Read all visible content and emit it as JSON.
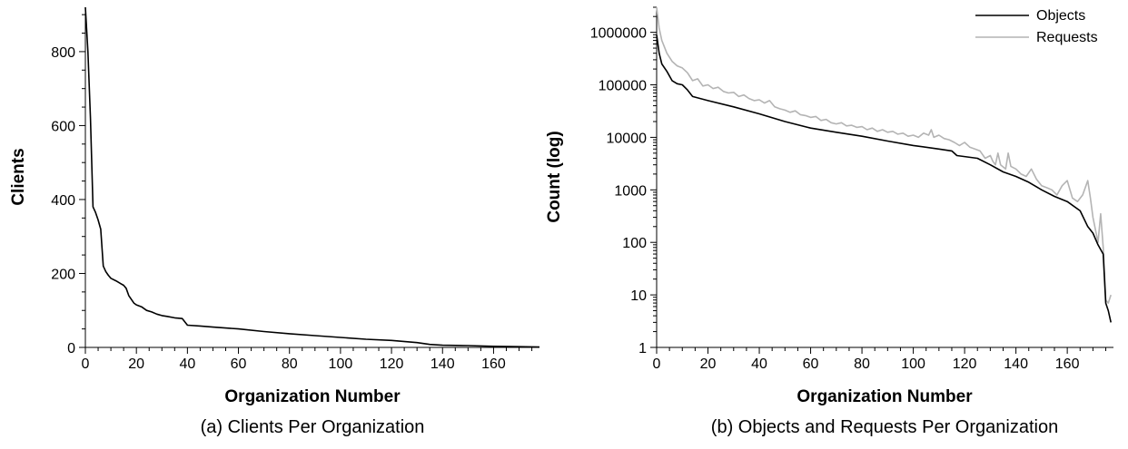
{
  "chart_data": [
    {
      "type": "line",
      "caption": "(a) Clients Per Organization",
      "xlabel": "Organization Number",
      "ylabel": "Clients",
      "xlim": [
        0,
        178
      ],
      "ylim": [
        0,
        920
      ],
      "xticks": [
        0,
        20,
        40,
        60,
        80,
        100,
        120,
        140,
        160
      ],
      "yticks": [
        0,
        200,
        400,
        600,
        800
      ],
      "series": [
        {
          "color": "#000000",
          "points": [
            [
              0,
              920
            ],
            [
              1,
              800
            ],
            [
              2,
              620
            ],
            [
              3,
              380
            ],
            [
              4,
              365
            ],
            [
              5,
              345
            ],
            [
              6,
              320
            ],
            [
              7,
              220
            ],
            [
              8,
              205
            ],
            [
              9,
              195
            ],
            [
              10,
              187
            ],
            [
              12,
              180
            ],
            [
              14,
              172
            ],
            [
              15,
              168
            ],
            [
              16,
              160
            ],
            [
              17,
              140
            ],
            [
              19,
              120
            ],
            [
              20,
              115
            ],
            [
              22,
              110
            ],
            [
              24,
              100
            ],
            [
              26,
              96
            ],
            [
              28,
              90
            ],
            [
              30,
              86
            ],
            [
              32,
              84
            ],
            [
              35,
              80
            ],
            [
              38,
              78
            ],
            [
              40,
              60
            ],
            [
              45,
              58
            ],
            [
              50,
              55
            ],
            [
              60,
              50
            ],
            [
              70,
              43
            ],
            [
              80,
              37
            ],
            [
              90,
              32
            ],
            [
              100,
              27
            ],
            [
              110,
              22
            ],
            [
              120,
              19
            ],
            [
              130,
              13
            ],
            [
              135,
              8
            ],
            [
              140,
              6
            ],
            [
              150,
              5
            ],
            [
              160,
              3
            ],
            [
              170,
              2
            ],
            [
              178,
              1
            ]
          ]
        }
      ]
    },
    {
      "type": "line",
      "caption": "(b) Objects and Requests Per Organization",
      "xlabel": "Organization Number",
      "ylabel": "Count (log)",
      "xlim": [
        0,
        178
      ],
      "yscale": "log",
      "ylim": [
        1,
        3000000
      ],
      "xticks": [
        0,
        20,
        40,
        60,
        80,
        100,
        120,
        140,
        160
      ],
      "yticks": [
        1,
        10,
        100,
        1000,
        10000,
        100000,
        1000000
      ],
      "ytick_labels": [
        "1",
        "10",
        "100",
        "1000",
        "10000",
        "100000",
        "1000000"
      ],
      "legend": {
        "position": "top-right"
      },
      "series": [
        {
          "name": "Objects",
          "color": "#000000",
          "points": [
            [
              0,
              900000
            ],
            [
              1,
              400000
            ],
            [
              2,
              250000
            ],
            [
              4,
              180000
            ],
            [
              6,
              120000
            ],
            [
              8,
              105000
            ],
            [
              10,
              100000
            ],
            [
              12,
              80000
            ],
            [
              14,
              60000
            ],
            [
              20,
              50000
            ],
            [
              30,
              38000
            ],
            [
              40,
              28000
            ],
            [
              50,
              20000
            ],
            [
              60,
              15000
            ],
            [
              70,
              12500
            ],
            [
              80,
              10500
            ],
            [
              90,
              8500
            ],
            [
              100,
              7000
            ],
            [
              110,
              6000
            ],
            [
              115,
              5500
            ],
            [
              117,
              4500
            ],
            [
              125,
              4000
            ],
            [
              130,
              3000
            ],
            [
              135,
              2200
            ],
            [
              140,
              1800
            ],
            [
              145,
              1400
            ],
            [
              150,
              1000
            ],
            [
              155,
              750
            ],
            [
              160,
              600
            ],
            [
              165,
              400
            ],
            [
              168,
              200
            ],
            [
              170,
              150
            ],
            [
              172,
              90
            ],
            [
              174,
              60
            ],
            [
              175,
              7
            ],
            [
              176,
              5
            ],
            [
              177,
              3
            ]
          ]
        },
        {
          "name": "Requests",
          "color": "#b4b4b4",
          "points": [
            [
              0,
              3000000
            ],
            [
              1,
              1200000
            ],
            [
              2,
              700000
            ],
            [
              4,
              400000
            ],
            [
              6,
              280000
            ],
            [
              8,
              230000
            ],
            [
              10,
              210000
            ],
            [
              12,
              170000
            ],
            [
              14,
              120000
            ],
            [
              16,
              130000
            ],
            [
              18,
              95000
            ],
            [
              20,
              100000
            ],
            [
              22,
              85000
            ],
            [
              24,
              90000
            ],
            [
              26,
              75000
            ],
            [
              28,
              70000
            ],
            [
              30,
              72000
            ],
            [
              32,
              60000
            ],
            [
              34,
              64000
            ],
            [
              36,
              55000
            ],
            [
              38,
              50000
            ],
            [
              40,
              52000
            ],
            [
              42,
              45000
            ],
            [
              44,
              50000
            ],
            [
              46,
              38000
            ],
            [
              48,
              35000
            ],
            [
              50,
              33000
            ],
            [
              52,
              30000
            ],
            [
              54,
              32000
            ],
            [
              56,
              27000
            ],
            [
              58,
              26000
            ],
            [
              60,
              24000
            ],
            [
              62,
              25000
            ],
            [
              64,
              21000
            ],
            [
              66,
              22000
            ],
            [
              68,
              19000
            ],
            [
              70,
              18000
            ],
            [
              72,
              19000
            ],
            [
              74,
              16500
            ],
            [
              76,
              17000
            ],
            [
              78,
              15500
            ],
            [
              80,
              16000
            ],
            [
              82,
              14000
            ],
            [
              84,
              15000
            ],
            [
              86,
              13000
            ],
            [
              88,
              14000
            ],
            [
              90,
              12500
            ],
            [
              92,
              13000
            ],
            [
              94,
              11500
            ],
            [
              96,
              12000
            ],
            [
              98,
              10500
            ],
            [
              100,
              11000
            ],
            [
              102,
              10000
            ],
            [
              104,
              12000
            ],
            [
              106,
              11000
            ],
            [
              107,
              14000
            ],
            [
              108,
              10000
            ],
            [
              110,
              11000
            ],
            [
              112,
              9500
            ],
            [
              114,
              9000
            ],
            [
              116,
              8000
            ],
            [
              118,
              7000
            ],
            [
              120,
              8000
            ],
            [
              122,
              6500
            ],
            [
              124,
              6000
            ],
            [
              126,
              5500
            ],
            [
              128,
              4000
            ],
            [
              130,
              4500
            ],
            [
              131,
              3500
            ],
            [
              132,
              3000
            ],
            [
              133,
              5000
            ],
            [
              134,
              3000
            ],
            [
              136,
              2500
            ],
            [
              137,
              5000
            ],
            [
              138,
              2800
            ],
            [
              140,
              2500
            ],
            [
              142,
              2000
            ],
            [
              144,
              1800
            ],
            [
              146,
              2500
            ],
            [
              148,
              1600
            ],
            [
              150,
              1200
            ],
            [
              152,
              1100
            ],
            [
              154,
              1000
            ],
            [
              156,
              800
            ],
            [
              158,
              1200
            ],
            [
              160,
              1500
            ],
            [
              162,
              700
            ],
            [
              164,
              600
            ],
            [
              166,
              800
            ],
            [
              168,
              1500
            ],
            [
              169,
              700
            ],
            [
              170,
              300
            ],
            [
              172,
              100
            ],
            [
              173,
              350
            ],
            [
              174,
              80
            ],
            [
              175,
              8
            ],
            [
              176,
              7
            ],
            [
              177,
              10
            ]
          ]
        }
      ]
    }
  ]
}
